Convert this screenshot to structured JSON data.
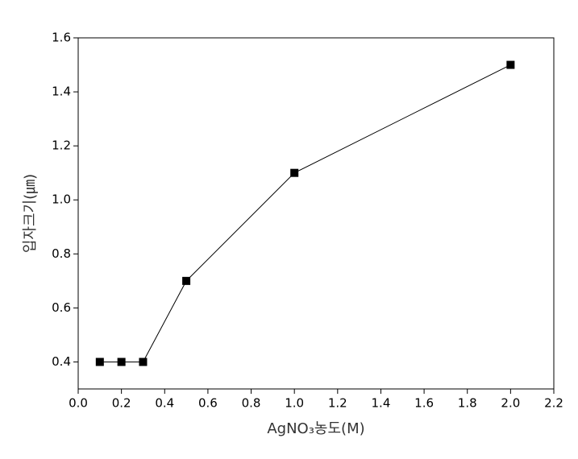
{
  "chart_data": {
    "type": "line",
    "x_label": "AgNO₃농도(M)",
    "y_label": "입자크기(㎛)",
    "x": [
      0.1,
      0.2,
      0.3,
      0.5,
      1.0,
      2.0
    ],
    "values": [
      0.4,
      0.4,
      0.4,
      0.7,
      1.1,
      1.5
    ],
    "color": "#000000",
    "marker": "square",
    "xlim": [
      0,
      2.2
    ],
    "xticks": [
      {
        "value": 0,
        "label": "0.0"
      },
      0.2,
      0.4,
      0.6,
      0.8,
      {
        "value": 1,
        "label": "1.0"
      },
      1.2,
      1.4,
      1.6,
      1.8,
      {
        "value": 2,
        "label": "2.0"
      },
      2.2
    ],
    "ylim": [
      0.3,
      1.6
    ],
    "yticks": [
      0.4,
      0.6,
      0.8,
      {
        "value": 1,
        "label": "1.0"
      },
      1.2,
      1.4,
      1.6
    ],
    "grid": false
  }
}
